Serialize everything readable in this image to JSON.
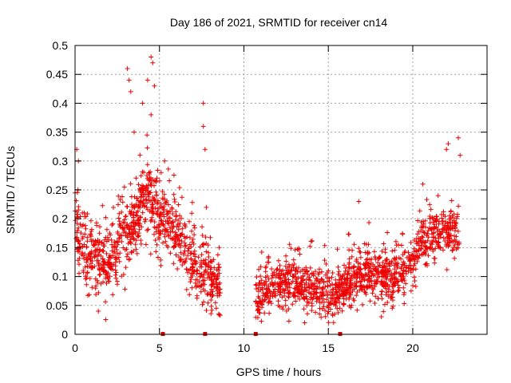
{
  "chart_data": {
    "type": "scatter",
    "title": "Day 186 of 2021, SRMTID for receiver cn14",
    "xlabel": "GPS time / hours",
    "ylabel": "SRMTID / TECUs",
    "xlim": [
      0,
      24.4
    ],
    "ylim": [
      0,
      0.5
    ],
    "x_ticks": [
      0,
      5,
      10,
      15,
      20
    ],
    "x_tick_labels": [
      "0",
      "5",
      "10",
      "15",
      "20"
    ],
    "y_ticks": [
      0,
      0.05,
      0.1,
      0.15,
      0.2,
      0.25,
      0.3,
      0.35,
      0.4,
      0.45,
      0.5
    ],
    "y_tick_labels": [
      "0",
      "0.05",
      "0.1",
      "0.15",
      "0.2",
      "0.25",
      "0.3",
      "0.35",
      "0.4",
      "0.45",
      "0.5"
    ],
    "grid": true,
    "legend": "none",
    "marker": "+",
    "color": "#ee0000",
    "series": [
      {
        "name": "SRMTID",
        "segments": [
          {
            "x_range": [
              0.0,
              8.6
            ],
            "trend_x": [
              0.0,
              0.3,
              1.0,
              2.0,
              2.8,
              3.5,
              4.3,
              5.0,
              5.8,
              6.5,
              7.2,
              8.0,
              8.6
            ],
            "trend_y": [
              0.19,
              0.16,
              0.13,
              0.12,
              0.17,
              0.2,
              0.24,
              0.2,
              0.19,
              0.15,
              0.12,
              0.1,
              0.08
            ],
            "spread": 0.06,
            "n_points": 900
          },
          {
            "x_range": [
              10.7,
              22.8
            ],
            "trend_x": [
              10.7,
              11.5,
              13.0,
              14.5,
              15.5,
              16.5,
              17.5,
              18.5,
              19.5,
              20.5,
              21.5,
              22.8
            ],
            "trend_y": [
              0.06,
              0.08,
              0.09,
              0.08,
              0.07,
              0.1,
              0.11,
              0.1,
              0.11,
              0.16,
              0.18,
              0.17
            ],
            "spread": 0.045,
            "n_points": 1200
          }
        ],
        "notable_points": [
          {
            "x": 0.1,
            "y": 0.32
          },
          {
            "x": 0.2,
            "y": 0.3
          },
          {
            "x": 3.1,
            "y": 0.46
          },
          {
            "x": 3.2,
            "y": 0.44
          },
          {
            "x": 3.3,
            "y": 0.42
          },
          {
            "x": 3.5,
            "y": 0.35
          },
          {
            "x": 4.0,
            "y": 0.4
          },
          {
            "x": 4.3,
            "y": 0.44
          },
          {
            "x": 4.5,
            "y": 0.48
          },
          {
            "x": 4.6,
            "y": 0.47
          },
          {
            "x": 4.5,
            "y": 0.38
          },
          {
            "x": 4.7,
            "y": 0.43
          },
          {
            "x": 5.3,
            "y": 0.3
          },
          {
            "x": 7.6,
            "y": 0.4
          },
          {
            "x": 7.6,
            "y": 0.36
          },
          {
            "x": 7.7,
            "y": 0.32
          },
          {
            "x": 16.8,
            "y": 0.23
          },
          {
            "x": 20.6,
            "y": 0.26
          },
          {
            "x": 21.5,
            "y": 0.24
          },
          {
            "x": 22.0,
            "y": 0.32
          },
          {
            "x": 22.1,
            "y": 0.33
          },
          {
            "x": 22.7,
            "y": 0.34
          },
          {
            "x": 22.8,
            "y": 0.31
          },
          {
            "x": 13.6,
            "y": 0.02
          }
        ],
        "zero_markers_x": [
          5.2,
          7.7,
          10.7,
          15.7
        ]
      }
    ]
  }
}
